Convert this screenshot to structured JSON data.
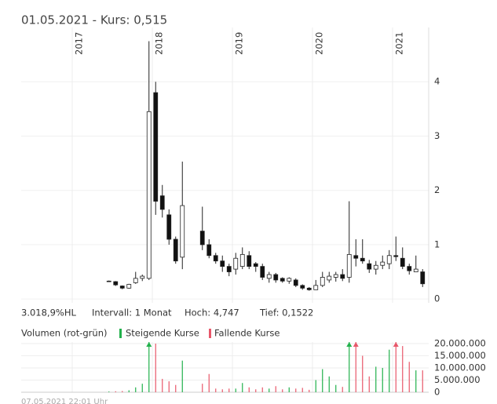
{
  "chart_data": {
    "type": "candlestick",
    "title": "01.05.2021  -  Kurs: 0,515",
    "stats": [
      "3.018,9%HL",
      "Intervall: 1 Monat",
      "Hoch: 4,747",
      "Tief: 0,1522"
    ],
    "categories": [
      "2017",
      null,
      null,
      null,
      null,
      null,
      null,
      null,
      null,
      null,
      null,
      null,
      "2018",
      null,
      null,
      null,
      null,
      null,
      null,
      null,
      null,
      null,
      null,
      null,
      "2019",
      null,
      null,
      null,
      null,
      null,
      null,
      null,
      null,
      null,
      null,
      null,
      "2020",
      null,
      null,
      null,
      null,
      null,
      null,
      null,
      null,
      null,
      null,
      null,
      "2021",
      null,
      null,
      null,
      null
    ],
    "open": [
      null,
      null,
      null,
      null,
      null,
      0.33,
      0.32,
      0.24,
      0.2,
      0.3,
      0.38,
      0.38,
      3.8,
      1.9,
      1.55,
      1.1,
      0.77,
      null,
      null,
      1.25,
      1.0,
      0.8,
      0.7,
      0.6,
      0.55,
      0.6,
      0.8,
      0.65,
      0.6,
      0.38,
      0.45,
      0.38,
      0.33,
      0.35,
      0.25,
      0.2,
      0.17,
      0.25,
      0.35,
      0.4,
      0.45,
      0.4,
      0.8,
      0.75,
      0.65,
      0.55,
      0.62,
      0.65,
      0.8,
      0.75,
      0.6,
      0.5,
      0.5
    ],
    "high": [
      null,
      null,
      null,
      null,
      null,
      0.34,
      0.33,
      0.25,
      0.28,
      0.5,
      0.45,
      4.747,
      4.0,
      2.1,
      1.65,
      1.15,
      2.53,
      null,
      null,
      1.7,
      1.1,
      0.85,
      0.8,
      0.65,
      0.85,
      0.95,
      0.88,
      0.68,
      0.65,
      0.5,
      0.48,
      0.4,
      0.4,
      0.38,
      0.27,
      0.22,
      0.35,
      0.5,
      0.5,
      0.5,
      0.55,
      1.8,
      1.1,
      1.1,
      0.72,
      0.7,
      0.8,
      0.9,
      1.15,
      0.95,
      0.65,
      0.8,
      0.55
    ],
    "low": [
      null,
      null,
      null,
      null,
      null,
      0.32,
      0.24,
      0.18,
      0.19,
      0.28,
      0.33,
      0.35,
      1.55,
      1.5,
      1.0,
      0.65,
      0.55,
      null,
      null,
      0.9,
      0.75,
      0.65,
      0.5,
      0.42,
      0.45,
      0.55,
      0.55,
      0.5,
      0.35,
      0.3,
      0.3,
      0.3,
      0.28,
      0.22,
      0.17,
      0.1522,
      0.17,
      0.22,
      0.3,
      0.32,
      0.33,
      0.3,
      0.6,
      0.65,
      0.48,
      0.45,
      0.55,
      0.55,
      0.7,
      0.55,
      0.45,
      0.5,
      0.22
    ],
    "close": [
      null,
      null,
      null,
      null,
      null,
      0.33,
      0.26,
      0.2,
      0.27,
      0.38,
      0.42,
      3.45,
      1.8,
      1.65,
      1.1,
      0.7,
      1.72,
      null,
      null,
      1.0,
      0.8,
      0.7,
      0.6,
      0.5,
      0.75,
      0.82,
      0.6,
      0.6,
      0.4,
      0.45,
      0.35,
      0.33,
      0.38,
      0.25,
      0.2,
      0.17,
      0.25,
      0.4,
      0.42,
      0.45,
      0.38,
      0.82,
      0.75,
      0.7,
      0.55,
      0.62,
      0.68,
      0.8,
      0.78,
      0.6,
      0.52,
      0.55,
      0.28
    ],
    "ylim": [
      -0.07,
      5.0
    ],
    "yticks": [
      0,
      1,
      2,
      3,
      4
    ],
    "grid": true,
    "volume": {
      "label": "Volumen (rot-grün)",
      "up_label": "Steigende Kurse",
      "up_color": "#22b14c",
      "down_label": "Fallende Kurse",
      "down_color": "#e8576a",
      "values": [
        null,
        null,
        null,
        null,
        null,
        300000,
        400000,
        500000,
        800000,
        2000000,
        3500000,
        22000000,
        20000000,
        5500000,
        4500000,
        3000000,
        13000000,
        null,
        null,
        3500000,
        7500000,
        1500000,
        1200000,
        1500000,
        1500000,
        3800000,
        2000000,
        1200000,
        2000000,
        1500000,
        2500000,
        1200000,
        2000000,
        1500000,
        1800000,
        1000000,
        5000000,
        9500000,
        6500000,
        3000000,
        2200000,
        22000000,
        22000000,
        15000000,
        6500000,
        10500000,
        10000000,
        17500000,
        22000000,
        19000000,
        12500000,
        9000000,
        9000000
      ],
      "ylim": [
        0,
        20000000
      ],
      "yticks": [
        0,
        {
          "value": 5000000,
          "label": "5.000.000"
        },
        {
          "value": 10000000,
          "label": "10.000.000"
        },
        {
          "value": 15000000,
          "label": "15.000.000"
        },
        {
          "value": 20000000,
          "label": "20.000.000"
        }
      ]
    },
    "footer": "07.05.2021 22:01 Uhr"
  }
}
